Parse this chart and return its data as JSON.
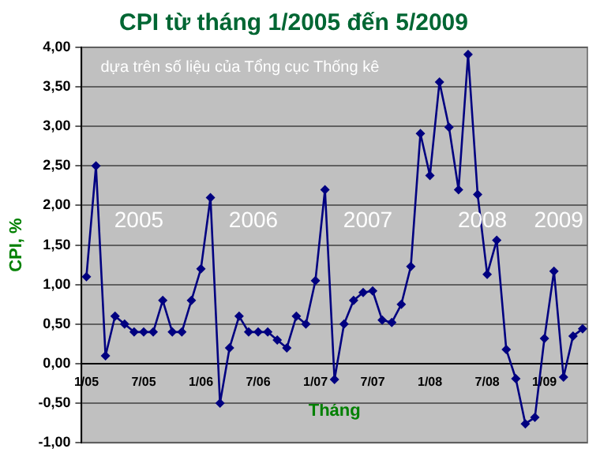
{
  "chart_data": {
    "type": "line",
    "title": "CPI từ tháng 1/2005 đến 5/2009",
    "xlabel": "Tháng",
    "ylabel": "CPI, %",
    "annotations": [
      "dựa trên số liệu của Tổng cục Thống kê",
      "2005",
      "2006",
      "2007",
      "2008",
      "2009"
    ],
    "categories": [
      "1/05",
      null,
      null,
      null,
      null,
      null,
      "7/05",
      null,
      null,
      null,
      null,
      null,
      "1/06",
      null,
      null,
      null,
      null,
      null,
      "7/06",
      null,
      null,
      null,
      null,
      null,
      "1/07",
      null,
      null,
      null,
      null,
      null,
      "7/07",
      null,
      null,
      null,
      null,
      null,
      "1/08",
      null,
      null,
      null,
      null,
      null,
      "7/08",
      null,
      null,
      null,
      null,
      null,
      "1/09",
      null,
      null,
      null,
      null
    ],
    "series": [
      {
        "color": "#000080",
        "values": [
          1.1,
          2.5,
          0.1,
          0.6,
          0.5,
          0.4,
          0.4,
          0.4,
          0.8,
          0.4,
          0.4,
          0.8,
          1.2,
          2.1,
          -0.5,
          0.2,
          0.6,
          0.4,
          0.4,
          0.4,
          0.3,
          0.2,
          0.6,
          0.5,
          1.05,
          2.2,
          -0.2,
          0.5,
          0.8,
          0.9,
          0.92,
          0.55,
          0.52,
          0.75,
          1.23,
          2.91,
          2.38,
          3.56,
          2.99,
          2.2,
          3.91,
          2.14,
          1.13,
          1.56,
          0.18,
          -0.19,
          -0.76,
          -0.68,
          0.32,
          1.17,
          -0.17,
          0.35,
          0.44
        ]
      }
    ],
    "ylim": [
      -1,
      4
    ],
    "yticks": [
      {
        "value": -1,
        "label": "-1,00"
      },
      {
        "value": -0.5,
        "label": "-0,50"
      },
      {
        "value": 0,
        "label": "0,00"
      },
      {
        "value": 0.5,
        "label": "0,50"
      },
      {
        "value": 1,
        "label": "1,00"
      },
      {
        "value": 1.5,
        "label": "1,50"
      },
      {
        "value": 2,
        "label": "2,00"
      },
      {
        "value": 2.5,
        "label": "2,50"
      },
      {
        "value": 3,
        "label": "3,00"
      },
      {
        "value": 3.5,
        "label": "3,50"
      },
      {
        "value": 4,
        "label": "4,00"
      }
    ],
    "grid": "y",
    "legend": false,
    "marker": "diamond",
    "line_style": "solid"
  }
}
